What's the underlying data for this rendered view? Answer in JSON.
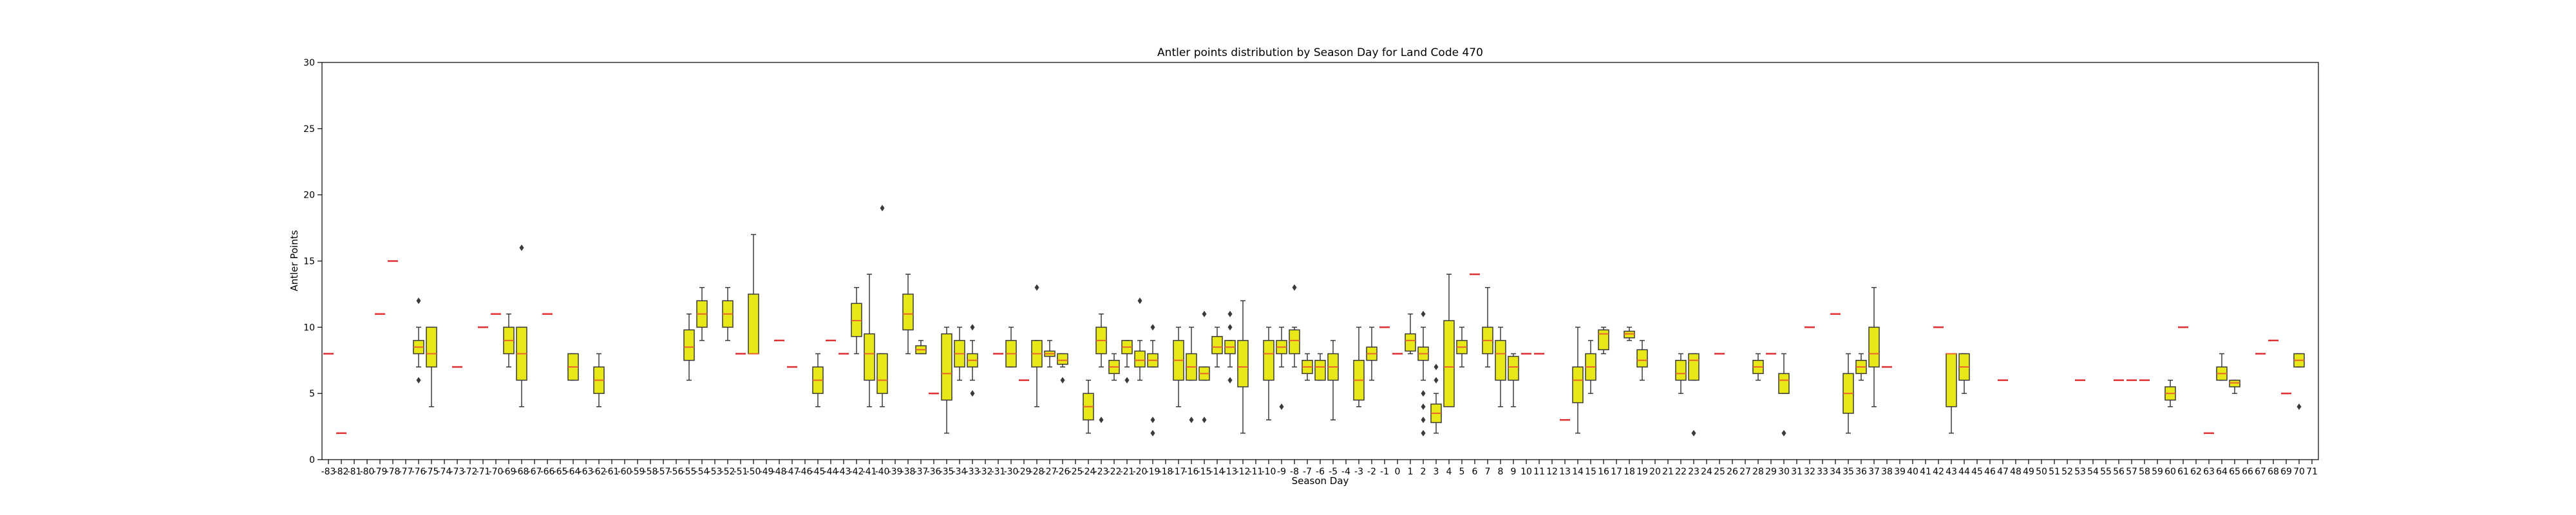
{
  "chart_data": {
    "type": "box",
    "title": "Antler points distribution by Season Day for Land Code 470",
    "xlabel": "Season Day",
    "ylabel": "Antler Points",
    "ylim": [
      0,
      30
    ],
    "yticks": [
      0,
      5,
      10,
      15,
      20,
      25,
      30
    ],
    "grid": false,
    "colors": {
      "box_fill": "#e8e816",
      "box_edge": "#3a3a3a",
      "median": "#e8642c",
      "single_obs": "#e03030"
    },
    "categories": [
      "-83",
      "-82",
      "-81",
      "-80",
      "-79",
      "-78",
      "-77",
      "-76",
      "-75",
      "-74",
      "-73",
      "-72",
      "-71",
      "-70",
      "-69",
      "-68",
      "-67",
      "-66",
      "-65",
      "-64",
      "-63",
      "-62",
      "-61",
      "-60",
      "-59",
      "-58",
      "-57",
      "-56",
      "-55",
      "-54",
      "-53",
      "-52",
      "-51",
      "-50",
      "-49",
      "-48",
      "-47",
      "-46",
      "-45",
      "-44",
      "-43",
      "-42",
      "-41",
      "-40",
      "-39",
      "-38",
      "-37",
      "-36",
      "-35",
      "-34",
      "-33",
      "-32",
      "-31",
      "-30",
      "-29",
      "-28",
      "-27",
      "-26",
      "-25",
      "-24",
      "-23",
      "-22",
      "-21",
      "-20",
      "-19",
      "-18",
      "-17",
      "-16",
      "-15",
      "-14",
      "-13",
      "-12",
      "-11",
      "-10",
      "-9",
      "-8",
      "-7",
      "-6",
      "-5",
      "-4",
      "-3",
      "-2",
      "-1",
      "0",
      "1",
      "2",
      "3",
      "4",
      "5",
      "6",
      "7",
      "8",
      "9",
      "10",
      "11",
      "12",
      "13",
      "14",
      "15",
      "16",
      "17",
      "18",
      "19",
      "20",
      "21",
      "22",
      "23",
      "24",
      "25",
      "26",
      "27",
      "28",
      "29",
      "30",
      "31",
      "32",
      "33",
      "34",
      "35",
      "36",
      "37",
      "38",
      "39",
      "40",
      "41",
      "42",
      "43",
      "44",
      "45",
      "46",
      "47",
      "48",
      "49",
      "50",
      "51",
      "52",
      "53",
      "54",
      "55",
      "56",
      "57",
      "58",
      "59",
      "60",
      "61",
      "62",
      "63",
      "64",
      "65",
      "66",
      "67",
      "68",
      "69",
      "70",
      "71"
    ],
    "boxes": [
      {
        "day": "-83",
        "min": 8,
        "q1": 8,
        "median": 8,
        "q3": 8,
        "max": 8,
        "outliers": []
      },
      {
        "day": "-82",
        "min": 2,
        "q1": 2,
        "median": 2,
        "q3": 2,
        "max": 2,
        "outliers": []
      },
      {
        "day": "-79",
        "min": 11,
        "q1": 11,
        "median": 11,
        "q3": 11,
        "max": 11,
        "outliers": []
      },
      {
        "day": "-78",
        "min": 15,
        "q1": 15,
        "median": 15,
        "q3": 15,
        "max": 15,
        "outliers": []
      },
      {
        "day": "-76",
        "min": 7,
        "q1": 8,
        "median": 8.5,
        "q3": 9,
        "max": 10,
        "outliers": [
          12,
          6
        ]
      },
      {
        "day": "-75",
        "min": 4,
        "q1": 7,
        "median": 8,
        "q3": 10,
        "max": 10,
        "outliers": []
      },
      {
        "day": "-73",
        "min": 7,
        "q1": 7,
        "median": 7,
        "q3": 7,
        "max": 7,
        "outliers": []
      },
      {
        "day": "-71",
        "min": 10,
        "q1": 10,
        "median": 10,
        "q3": 10,
        "max": 10,
        "outliers": []
      },
      {
        "day": "-70",
        "min": 11,
        "q1": 11,
        "median": 11,
        "q3": 11,
        "max": 11,
        "outliers": []
      },
      {
        "day": "-69",
        "min": 7,
        "q1": 8,
        "median": 9,
        "q3": 10,
        "max": 11,
        "outliers": []
      },
      {
        "day": "-68",
        "min": 4,
        "q1": 6,
        "median": 8,
        "q3": 10,
        "max": 10,
        "outliers": [
          16
        ]
      },
      {
        "day": "-66",
        "min": 11,
        "q1": 11,
        "median": 11,
        "q3": 11,
        "max": 11,
        "outliers": []
      },
      {
        "day": "-64",
        "min": 6,
        "q1": 6,
        "median": 7,
        "q3": 8,
        "max": 8,
        "outliers": []
      },
      {
        "day": "-62",
        "min": 4,
        "q1": 5,
        "median": 6,
        "q3": 7,
        "max": 8,
        "outliers": []
      },
      {
        "day": "-55",
        "min": 6,
        "q1": 7.5,
        "median": 8.5,
        "q3": 9.8,
        "max": 11,
        "outliers": []
      },
      {
        "day": "-54",
        "min": 9,
        "q1": 10,
        "median": 11,
        "q3": 12,
        "max": 13,
        "outliers": []
      },
      {
        "day": "-52",
        "min": 9,
        "q1": 10,
        "median": 11,
        "q3": 12,
        "max": 13,
        "outliers": []
      },
      {
        "day": "-51",
        "min": 8,
        "q1": 8,
        "median": 8,
        "q3": 8,
        "max": 8,
        "outliers": []
      },
      {
        "day": "-50",
        "min": 8,
        "q1": 8,
        "median": 8,
        "q3": 12.5,
        "max": 17,
        "outliers": []
      },
      {
        "day": "-48",
        "min": 9,
        "q1": 9,
        "median": 9,
        "q3": 9,
        "max": 9,
        "outliers": []
      },
      {
        "day": "-47",
        "min": 7,
        "q1": 7,
        "median": 7,
        "q3": 7,
        "max": 7,
        "outliers": []
      },
      {
        "day": "-45",
        "min": 4,
        "q1": 5,
        "median": 6,
        "q3": 7,
        "max": 8,
        "outliers": []
      },
      {
        "day": "-44",
        "min": 9,
        "q1": 9,
        "median": 9,
        "q3": 9,
        "max": 9,
        "outliers": []
      },
      {
        "day": "-43",
        "min": 8,
        "q1": 8,
        "median": 8,
        "q3": 8,
        "max": 8,
        "outliers": []
      },
      {
        "day": "-42",
        "min": 8,
        "q1": 9.3,
        "median": 10.5,
        "q3": 11.8,
        "max": 13,
        "outliers": []
      },
      {
        "day": "-41",
        "min": 4,
        "q1": 6,
        "median": 8,
        "q3": 9.5,
        "max": 14,
        "outliers": []
      },
      {
        "day": "-40",
        "min": 4,
        "q1": 5,
        "median": 6,
        "q3": 8,
        "max": 8,
        "outliers": [
          19
        ]
      },
      {
        "day": "-38",
        "min": 8,
        "q1": 9.8,
        "median": 11,
        "q3": 12.5,
        "max": 14,
        "outliers": []
      },
      {
        "day": "-37",
        "min": 8,
        "q1": 8,
        "median": 8.3,
        "q3": 8.6,
        "max": 9,
        "outliers": []
      },
      {
        "day": "-36",
        "min": 5,
        "q1": 5,
        "median": 5,
        "q3": 5,
        "max": 5,
        "outliers": []
      },
      {
        "day": "-35",
        "min": 2,
        "q1": 4.5,
        "median": 6.5,
        "q3": 9.5,
        "max": 10,
        "outliers": []
      },
      {
        "day": "-34",
        "min": 6,
        "q1": 7,
        "median": 8,
        "q3": 9,
        "max": 10,
        "outliers": []
      },
      {
        "day": "-33",
        "min": 6,
        "q1": 7,
        "median": 7.5,
        "q3": 8,
        "max": 9,
        "outliers": [
          10,
          5
        ]
      },
      {
        "day": "-31",
        "min": 8,
        "q1": 8,
        "median": 8,
        "q3": 8,
        "max": 8,
        "outliers": []
      },
      {
        "day": "-30",
        "min": 7,
        "q1": 7,
        "median": 8,
        "q3": 9,
        "max": 10,
        "outliers": []
      },
      {
        "day": "-29",
        "min": 6,
        "q1": 6,
        "median": 6,
        "q3": 6,
        "max": 6,
        "outliers": []
      },
      {
        "day": "-28",
        "min": 4,
        "q1": 7,
        "median": 8,
        "q3": 9,
        "max": 9,
        "outliers": [
          13
        ]
      },
      {
        "day": "-27",
        "min": 7,
        "q1": 7.8,
        "median": 8,
        "q3": 8.2,
        "max": 9,
        "outliers": []
      },
      {
        "day": "-26",
        "min": 7,
        "q1": 7.2,
        "median": 7.5,
        "q3": 8,
        "max": 8,
        "outliers": [
          6
        ]
      },
      {
        "day": "-24",
        "min": 2,
        "q1": 3,
        "median": 4,
        "q3": 5,
        "max": 6,
        "outliers": []
      },
      {
        "day": "-23",
        "min": 7,
        "q1": 8,
        "median": 9,
        "q3": 10,
        "max": 11,
        "outliers": [
          3
        ]
      },
      {
        "day": "-22",
        "min": 6,
        "q1": 6.5,
        "median": 7,
        "q3": 7.5,
        "max": 8,
        "outliers": []
      },
      {
        "day": "-21",
        "min": 7,
        "q1": 8,
        "median": 8.5,
        "q3": 9,
        "max": 9,
        "outliers": [
          6
        ]
      },
      {
        "day": "-20",
        "min": 6,
        "q1": 7,
        "median": 7.5,
        "q3": 8.2,
        "max": 9,
        "outliers": [
          12
        ]
      },
      {
        "day": "-19",
        "min": 7,
        "q1": 7,
        "median": 7.5,
        "q3": 8,
        "max": 9,
        "outliers": [
          10,
          3,
          2
        ]
      },
      {
        "day": "-17",
        "min": 4,
        "q1": 6,
        "median": 7.5,
        "q3": 9,
        "max": 10,
        "outliers": []
      },
      {
        "day": "-16",
        "min": 6,
        "q1": 6,
        "median": 7,
        "q3": 8,
        "max": 10,
        "outliers": [
          3
        ]
      },
      {
        "day": "-15",
        "min": 6,
        "q1": 6,
        "median": 6.5,
        "q3": 7,
        "max": 7,
        "outliers": [
          11,
          3
        ]
      },
      {
        "day": "-14",
        "min": 7,
        "q1": 8,
        "median": 8.5,
        "q3": 9.3,
        "max": 10,
        "outliers": []
      },
      {
        "day": "-13",
        "min": 7,
        "q1": 8,
        "median": 8.5,
        "q3": 9,
        "max": 9,
        "outliers": [
          11,
          10,
          6
        ]
      },
      {
        "day": "-12",
        "min": 2,
        "q1": 5.5,
        "median": 7,
        "q3": 9,
        "max": 12,
        "outliers": []
      },
      {
        "day": "-10",
        "min": 3,
        "q1": 6,
        "median": 8,
        "q3": 9,
        "max": 10,
        "outliers": []
      },
      {
        "day": "-9",
        "min": 7,
        "q1": 8,
        "median": 8.5,
        "q3": 9,
        "max": 10,
        "outliers": [
          4
        ]
      },
      {
        "day": "-8",
        "min": 7,
        "q1": 8,
        "median": 9,
        "q3": 9.8,
        "max": 10,
        "outliers": [
          13
        ]
      },
      {
        "day": "-7",
        "min": 6,
        "q1": 6.5,
        "median": 7,
        "q3": 7.5,
        "max": 8,
        "outliers": []
      },
      {
        "day": "-6",
        "min": 6,
        "q1": 6,
        "median": 7,
        "q3": 7.5,
        "max": 8,
        "outliers": []
      },
      {
        "day": "-5",
        "min": 3,
        "q1": 6,
        "median": 7,
        "q3": 8,
        "max": 9,
        "outliers": []
      },
      {
        "day": "-3",
        "min": 4,
        "q1": 4.5,
        "median": 6,
        "q3": 7.5,
        "max": 10,
        "outliers": []
      },
      {
        "day": "-2",
        "min": 6,
        "q1": 7.5,
        "median": 8,
        "q3": 8.5,
        "max": 10,
        "outliers": []
      },
      {
        "day": "-1",
        "min": 10,
        "q1": 10,
        "median": 10,
        "q3": 10,
        "max": 10,
        "outliers": []
      },
      {
        "day": "0",
        "min": 8,
        "q1": 8,
        "median": 8,
        "q3": 8,
        "max": 8,
        "outliers": []
      },
      {
        "day": "1",
        "min": 8,
        "q1": 8.2,
        "median": 9,
        "q3": 9.5,
        "max": 11,
        "outliers": []
      },
      {
        "day": "2",
        "min": 6,
        "q1": 7.5,
        "median": 8,
        "q3": 8.5,
        "max": 10,
        "outliers": [
          11,
          5,
          4,
          3,
          2
        ]
      },
      {
        "day": "3",
        "min": 2,
        "q1": 2.8,
        "median": 3.5,
        "q3": 4.2,
        "max": 5,
        "outliers": [
          7,
          6
        ]
      },
      {
        "day": "4",
        "min": 4,
        "q1": 4,
        "median": 7,
        "q3": 10.5,
        "max": 14,
        "outliers": []
      },
      {
        "day": "5",
        "min": 7,
        "q1": 8,
        "median": 8.5,
        "q3": 9,
        "max": 10,
        "outliers": []
      },
      {
        "day": "6",
        "min": 14,
        "q1": 14,
        "median": 14,
        "q3": 14,
        "max": 14,
        "outliers": []
      },
      {
        "day": "7",
        "min": 7,
        "q1": 8,
        "median": 9,
        "q3": 10,
        "max": 13,
        "outliers": []
      },
      {
        "day": "8",
        "min": 4,
        "q1": 6,
        "median": 8,
        "q3": 9,
        "max": 10,
        "outliers": []
      },
      {
        "day": "9",
        "min": 4,
        "q1": 6,
        "median": 7,
        "q3": 7.8,
        "max": 8,
        "outliers": []
      },
      {
        "day": "10",
        "min": 8,
        "q1": 8,
        "median": 8,
        "q3": 8,
        "max": 8,
        "outliers": []
      },
      {
        "day": "11",
        "min": 8,
        "q1": 8,
        "median": 8,
        "q3": 8,
        "max": 8,
        "outliers": []
      },
      {
        "day": "13",
        "min": 3,
        "q1": 3,
        "median": 3,
        "q3": 3,
        "max": 3,
        "outliers": []
      },
      {
        "day": "14",
        "min": 2,
        "q1": 4.3,
        "median": 6,
        "q3": 7,
        "max": 10,
        "outliers": []
      },
      {
        "day": "15",
        "min": 5,
        "q1": 6,
        "median": 7,
        "q3": 8,
        "max": 9,
        "outliers": []
      },
      {
        "day": "16",
        "min": 8,
        "q1": 8.3,
        "median": 9.5,
        "q3": 9.8,
        "max": 10,
        "outliers": []
      },
      {
        "day": "18",
        "min": 9,
        "q1": 9.2,
        "median": 9.5,
        "q3": 9.7,
        "max": 10,
        "outliers": []
      },
      {
        "day": "19",
        "min": 6,
        "q1": 7,
        "median": 7.5,
        "q3": 8.3,
        "max": 9,
        "outliers": []
      },
      {
        "day": "22",
        "min": 5,
        "q1": 6,
        "median": 6.5,
        "q3": 7.5,
        "max": 8,
        "outliers": []
      },
      {
        "day": "23",
        "min": 6,
        "q1": 6,
        "median": 7.5,
        "q3": 8,
        "max": 8,
        "outliers": [
          2
        ]
      },
      {
        "day": "25",
        "min": 8,
        "q1": 8,
        "median": 8,
        "q3": 8,
        "max": 8,
        "outliers": []
      },
      {
        "day": "28",
        "min": 6,
        "q1": 6.5,
        "median": 7,
        "q3": 7.5,
        "max": 8,
        "outliers": []
      },
      {
        "day": "29",
        "min": 8,
        "q1": 8,
        "median": 8,
        "q3": 8,
        "max": 8,
        "outliers": []
      },
      {
        "day": "30",
        "min": 5,
        "q1": 5,
        "median": 6,
        "q3": 6.5,
        "max": 8,
        "outliers": [
          2
        ]
      },
      {
        "day": "32",
        "min": 10,
        "q1": 10,
        "median": 10,
        "q3": 10,
        "max": 10,
        "outliers": []
      },
      {
        "day": "34",
        "min": 11,
        "q1": 11,
        "median": 11,
        "q3": 11,
        "max": 11,
        "outliers": []
      },
      {
        "day": "35",
        "min": 2,
        "q1": 3.5,
        "median": 5,
        "q3": 6.5,
        "max": 8,
        "outliers": []
      },
      {
        "day": "36",
        "min": 6,
        "q1": 6.5,
        "median": 7,
        "q3": 7.5,
        "max": 8,
        "outliers": []
      },
      {
        "day": "37",
        "min": 4,
        "q1": 7,
        "median": 8,
        "q3": 10,
        "max": 13,
        "outliers": []
      },
      {
        "day": "38",
        "min": 7,
        "q1": 7,
        "median": 7,
        "q3": 7,
        "max": 7,
        "outliers": []
      },
      {
        "day": "42",
        "min": 10,
        "q1": 10,
        "median": 10,
        "q3": 10,
        "max": 10,
        "outliers": []
      },
      {
        "day": "43",
        "min": 2,
        "q1": 4,
        "median": 8,
        "q3": 8,
        "max": 8,
        "outliers": []
      },
      {
        "day": "44",
        "min": 5,
        "q1": 6,
        "median": 7,
        "q3": 8,
        "max": 8,
        "outliers": []
      },
      {
        "day": "47",
        "min": 6,
        "q1": 6,
        "median": 6,
        "q3": 6,
        "max": 6,
        "outliers": []
      },
      {
        "day": "53",
        "min": 6,
        "q1": 6,
        "median": 6,
        "q3": 6,
        "max": 6,
        "outliers": []
      },
      {
        "day": "56",
        "min": 6,
        "q1": 6,
        "median": 6,
        "q3": 6,
        "max": 6,
        "outliers": []
      },
      {
        "day": "57",
        "min": 6,
        "q1": 6,
        "median": 6,
        "q3": 6,
        "max": 6,
        "outliers": []
      },
      {
        "day": "58",
        "min": 6,
        "q1": 6,
        "median": 6,
        "q3": 6,
        "max": 6,
        "outliers": []
      },
      {
        "day": "60",
        "min": 4,
        "q1": 4.5,
        "median": 5,
        "q3": 5.5,
        "max": 6,
        "outliers": []
      },
      {
        "day": "61",
        "min": 10,
        "q1": 10,
        "median": 10,
        "q3": 10,
        "max": 10,
        "outliers": []
      },
      {
        "day": "63",
        "min": 2,
        "q1": 2,
        "median": 2,
        "q3": 2,
        "max": 2,
        "outliers": []
      },
      {
        "day": "64",
        "min": 6,
        "q1": 6,
        "median": 6.5,
        "q3": 7,
        "max": 8,
        "outliers": []
      },
      {
        "day": "65",
        "min": 5,
        "q1": 5.5,
        "median": 5.8,
        "q3": 6,
        "max": 6,
        "outliers": []
      },
      {
        "day": "67",
        "min": 8,
        "q1": 8,
        "median": 8,
        "q3": 8,
        "max": 8,
        "outliers": []
      },
      {
        "day": "68",
        "min": 9,
        "q1": 9,
        "median": 9,
        "q3": 9,
        "max": 9,
        "outliers": []
      },
      {
        "day": "69",
        "min": 5,
        "q1": 5,
        "median": 5,
        "q3": 5,
        "max": 5,
        "outliers": []
      },
      {
        "day": "70",
        "min": 7,
        "q1": 7,
        "median": 7.5,
        "q3": 8,
        "max": 8,
        "outliers": [
          4
        ]
      }
    ]
  }
}
